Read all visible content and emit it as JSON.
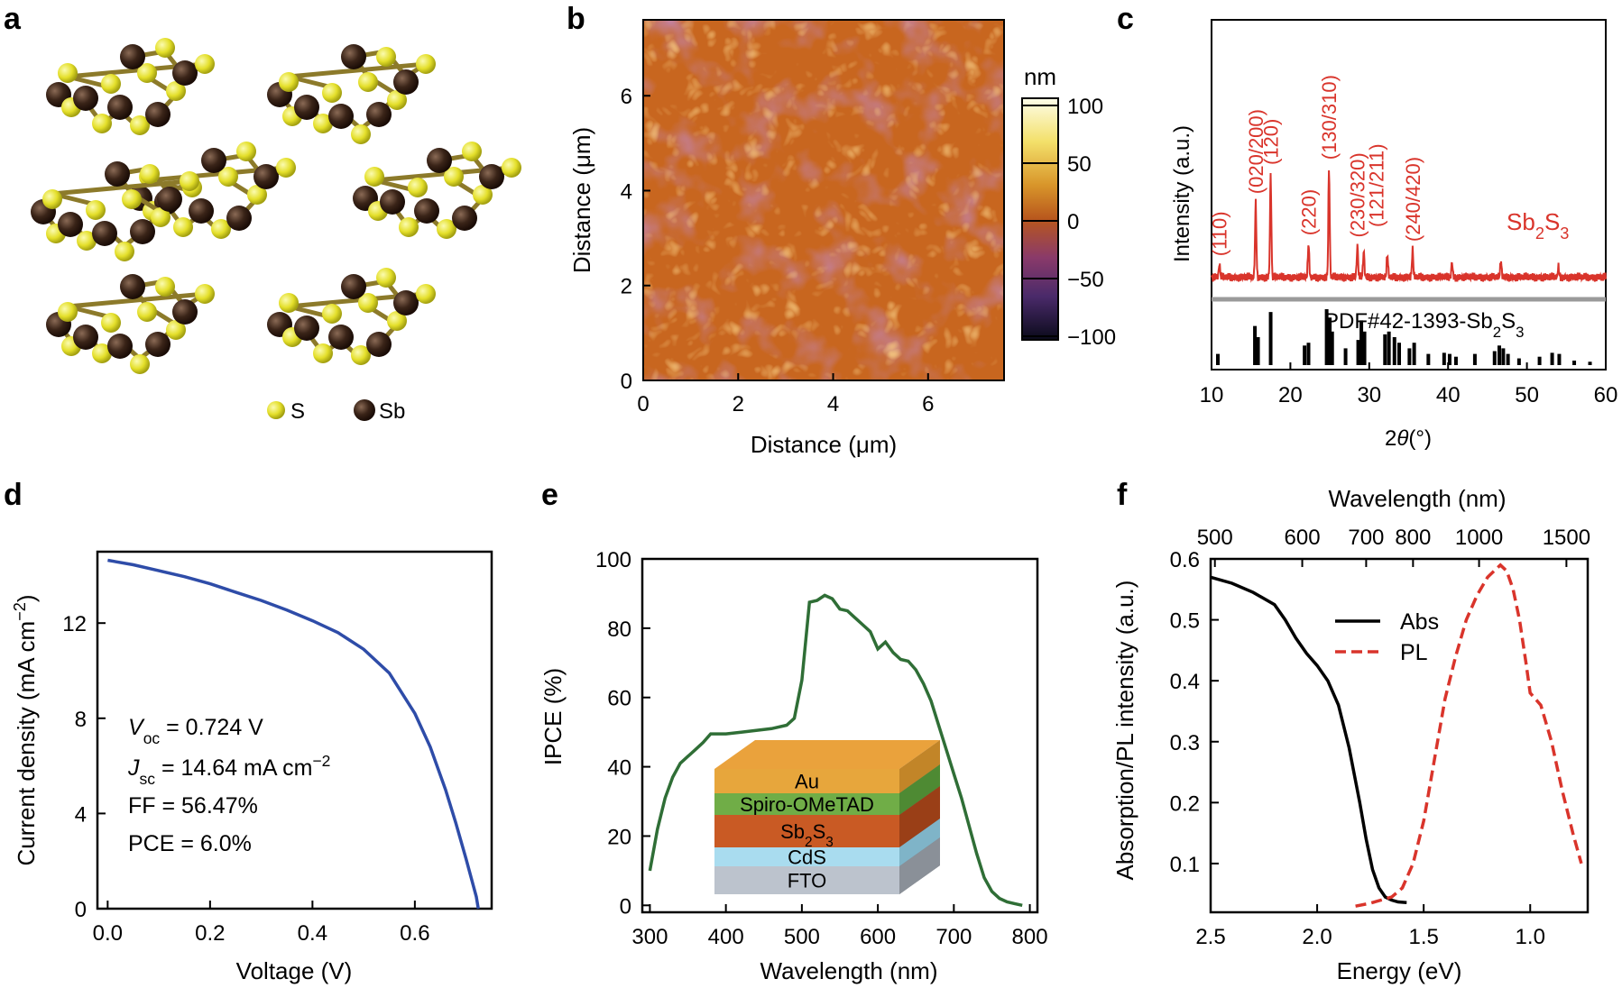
{
  "panels": [
    {
      "id": "a",
      "letter": "a"
    },
    {
      "id": "b",
      "letter": "b"
    },
    {
      "id": "c",
      "letter": "c"
    },
    {
      "id": "d",
      "letter": "d"
    },
    {
      "id": "e",
      "letter": "e"
    },
    {
      "id": "f",
      "letter": "f"
    }
  ],
  "structure": {
    "legend": [
      {
        "label": "S",
        "color": "#e8e436"
      },
      {
        "label": "Sb",
        "color": "#3a2418"
      }
    ]
  },
  "afm": {
    "xlabel": "Distance (μm)",
    "ylabel": "Distance (μm)",
    "ticks": [
      "0",
      "2",
      "4",
      "6"
    ],
    "colorbar_unit": "nm",
    "colorbar_ticks": [
      "100",
      "50",
      "0",
      "−50",
      "−100"
    ]
  },
  "chart_data": [
    {
      "panel": "c",
      "type": "bar",
      "title": "",
      "xlabel_pre": "2",
      "xlabel_var": "θ",
      "xlabel_post": "(°)",
      "ylabel": "Intensity (a.u.)",
      "xlim": [
        10,
        60
      ],
      "xticks": [
        "10",
        "20",
        "30",
        "40",
        "50",
        "60"
      ],
      "sample": "Sb",
      "sample_sub": "2",
      "sample_tail": "S",
      "sample_sub2": "3",
      "reference_pre": "PDF#42-1393-Sb",
      "reference_sub": "2",
      "reference_mid": "S",
      "reference_sub2": "3",
      "peaks": [
        {
          "x": 11.0,
          "h": 0.12
        },
        {
          "x": 15.6,
          "h": 0.72
        },
        {
          "x": 17.5,
          "h": 1.0
        },
        {
          "x": 22.3,
          "h": 0.32
        },
        {
          "x": 24.9,
          "h": 1.05
        },
        {
          "x": 28.5,
          "h": 0.3
        },
        {
          "x": 29.3,
          "h": 0.25
        },
        {
          "x": 32.3,
          "h": 0.22
        },
        {
          "x": 35.5,
          "h": 0.26
        },
        {
          "x": 40.5,
          "h": 0.14
        },
        {
          "x": 46.7,
          "h": 0.16
        },
        {
          "x": 54.0,
          "h": 0.1
        }
      ],
      "peak_labels": [
        {
          "x": 11.0,
          "label": "(110)"
        },
        {
          "x": 15.6,
          "label": "(020/200)"
        },
        {
          "x": 17.5,
          "label": "(120)"
        },
        {
          "x": 22.3,
          "label": "(220)"
        },
        {
          "x": 24.9,
          "label": "(130/310)"
        },
        {
          "x": 28.5,
          "label": "(230/320)"
        },
        {
          "x": 30.9,
          "label": "(121/211)"
        },
        {
          "x": 35.5,
          "label": "(240/420)"
        }
      ],
      "reference_sticks": [
        {
          "x": 10.8,
          "h": 0.2
        },
        {
          "x": 15.5,
          "h": 0.7
        },
        {
          "x": 15.9,
          "h": 0.5
        },
        {
          "x": 17.5,
          "h": 0.95
        },
        {
          "x": 21.8,
          "h": 0.35
        },
        {
          "x": 22.3,
          "h": 0.4
        },
        {
          "x": 24.6,
          "h": 1.0
        },
        {
          "x": 25.0,
          "h": 0.85
        },
        {
          "x": 25.3,
          "h": 0.6
        },
        {
          "x": 27.0,
          "h": 0.3
        },
        {
          "x": 28.6,
          "h": 0.45
        },
        {
          "x": 29.0,
          "h": 0.8
        },
        {
          "x": 29.4,
          "h": 0.6
        },
        {
          "x": 32.0,
          "h": 0.55
        },
        {
          "x": 32.5,
          "h": 0.6
        },
        {
          "x": 33.2,
          "h": 0.5
        },
        {
          "x": 33.8,
          "h": 0.4
        },
        {
          "x": 35.1,
          "h": 0.3
        },
        {
          "x": 35.7,
          "h": 0.4
        },
        {
          "x": 37.5,
          "h": 0.2
        },
        {
          "x": 39.5,
          "h": 0.22
        },
        {
          "x": 40.2,
          "h": 0.2
        },
        {
          "x": 41.0,
          "h": 0.15
        },
        {
          "x": 43.4,
          "h": 0.2
        },
        {
          "x": 45.9,
          "h": 0.25
        },
        {
          "x": 46.5,
          "h": 0.35
        },
        {
          "x": 47.0,
          "h": 0.3
        },
        {
          "x": 47.6,
          "h": 0.2
        },
        {
          "x": 49.0,
          "h": 0.12
        },
        {
          "x": 51.6,
          "h": 0.15
        },
        {
          "x": 53.2,
          "h": 0.22
        },
        {
          "x": 54.1,
          "h": 0.2
        },
        {
          "x": 56.0,
          "h": 0.08
        },
        {
          "x": 58.0,
          "h": 0.06
        }
      ]
    },
    {
      "panel": "d",
      "type": "line",
      "xlabel": "Voltage (V)",
      "ylabel": "Current density (mA cm",
      "ylabel_sup": "−2",
      "ylabel_tail": ")",
      "xlim": [
        -0.02,
        0.75
      ],
      "ylim": [
        0,
        15
      ],
      "xticks": [
        {
          "v": 0.0,
          "l": "0.0"
        },
        {
          "v": 0.2,
          "l": "0.2"
        },
        {
          "v": 0.4,
          "l": "0.4"
        },
        {
          "v": 0.6,
          "l": "0.6"
        }
      ],
      "yticks": [
        {
          "v": 0,
          "l": "0"
        },
        {
          "v": 4,
          "l": "4"
        },
        {
          "v": 8,
          "l": "8"
        },
        {
          "v": 12,
          "l": "12"
        }
      ],
      "x": [
        0.0,
        0.05,
        0.1,
        0.15,
        0.2,
        0.25,
        0.3,
        0.35,
        0.4,
        0.45,
        0.5,
        0.55,
        0.6,
        0.63,
        0.66,
        0.68,
        0.7,
        0.71,
        0.72,
        0.724
      ],
      "y": [
        14.64,
        14.45,
        14.2,
        13.95,
        13.65,
        13.3,
        12.95,
        12.55,
        12.1,
        11.6,
        10.9,
        9.9,
        8.2,
        6.8,
        5.0,
        3.6,
        2.1,
        1.3,
        0.5,
        0.0
      ],
      "color": "#2e4ca8",
      "annotations": {
        "voc_pre": "V",
        "voc_sub": "oc",
        "voc_val": " = 0.724 V",
        "jsc_pre": "J",
        "jsc_sub": "sc",
        "jsc_val": " = 14.64 mA cm",
        "jsc_sup": "−2",
        "ff": "FF = 56.47%",
        "pce": "PCE = 6.0%"
      }
    },
    {
      "panel": "e",
      "type": "line",
      "xlabel": "Wavelength (nm)",
      "ylabel": "IPCE (%)",
      "xlim": [
        290,
        810
      ],
      "ylim": [
        -2,
        100
      ],
      "xticks": [
        {
          "v": 300,
          "l": "300"
        },
        {
          "v": 400,
          "l": "400"
        },
        {
          "v": 500,
          "l": "500"
        },
        {
          "v": 600,
          "l": "600"
        },
        {
          "v": 700,
          "l": "700"
        },
        {
          "v": 800,
          "l": "800"
        }
      ],
      "yticks": [
        {
          "v": 0,
          "l": "0"
        },
        {
          "v": 20,
          "l": "20"
        },
        {
          "v": 40,
          "l": "40"
        },
        {
          "v": 60,
          "l": "60"
        },
        {
          "v": 80,
          "l": "80"
        },
        {
          "v": 100,
          "l": "100"
        }
      ],
      "x": [
        300,
        310,
        320,
        330,
        340,
        350,
        360,
        370,
        380,
        390,
        400,
        420,
        440,
        460,
        480,
        490,
        500,
        510,
        520,
        530,
        540,
        550,
        560,
        570,
        580,
        590,
        600,
        610,
        620,
        630,
        640,
        650,
        660,
        670,
        680,
        690,
        700,
        710,
        720,
        730,
        740,
        750,
        760,
        770,
        780,
        790
      ],
      "y": [
        10,
        22,
        31,
        37,
        41,
        43,
        45,
        47,
        49.5,
        49.5,
        49.5,
        50,
        50.5,
        51,
        52,
        54,
        65,
        87.5,
        88,
        89.5,
        88.5,
        85.5,
        85,
        83,
        81,
        79,
        74,
        76,
        73,
        71,
        70.5,
        68,
        64,
        59,
        52,
        45,
        38,
        31,
        23,
        15,
        8,
        4,
        2,
        1,
        0.5,
        0
      ],
      "color": "#2f6e36",
      "inset_layers": [
        {
          "label": "Au",
          "top": "#eaa23c",
          "front": "#e7a63c"
        },
        {
          "label": "Spiro-OMeTAD",
          "top": "#75b24c",
          "front": "#70ad47"
        },
        {
          "label_pre": "Sb",
          "label_sub": "2",
          "label_mid": "S",
          "label_sub2": "3",
          "top": "#c6521e",
          "front": "#c95a24"
        },
        {
          "label": "CdS",
          "top": "#a8dcf0",
          "front": "#a9dcef"
        },
        {
          "label": "FTO",
          "top": "#b6bcc6",
          "front": "#bcc3cd"
        }
      ]
    },
    {
      "panel": "f",
      "type": "line",
      "xlabel": "Energy (eV)",
      "x2label": "Wavelength (nm)",
      "ylabel": "Absorption/PL intensity (a.u.)",
      "xlim": [
        2.5,
        0.73
      ],
      "ylim": [
        0.02,
        0.6
      ],
      "xticks": [
        {
          "v": 2.5,
          "l": "2.5"
        },
        {
          "v": 2.0,
          "l": "2.0"
        },
        {
          "v": 1.5,
          "l": "1.5"
        },
        {
          "v": 1.0,
          "l": "1.0"
        }
      ],
      "x2ticks": [
        {
          "v": 2.48,
          "l": "500"
        },
        {
          "v": 2.07,
          "l": "600"
        },
        {
          "v": 1.77,
          "l": "700"
        },
        {
          "v": 1.55,
          "l": "800"
        },
        {
          "v": 1.24,
          "l": "1000"
        },
        {
          "v": 0.83,
          "l": "1500"
        }
      ],
      "yticks": [
        {
          "v": 0.1,
          "l": "0.1"
        },
        {
          "v": 0.2,
          "l": "0.2"
        },
        {
          "v": 0.3,
          "l": "0.3"
        },
        {
          "v": 0.4,
          "l": "0.4"
        },
        {
          "v": 0.5,
          "l": "0.5"
        },
        {
          "v": 0.6,
          "l": "0.6"
        }
      ],
      "series": [
        {
          "name": "Abs",
          "color": "#000000",
          "dash": false,
          "x": [
            2.5,
            2.4,
            2.3,
            2.2,
            2.15,
            2.1,
            2.05,
            2.0,
            1.95,
            1.9,
            1.85,
            1.8,
            1.77,
            1.74,
            1.71,
            1.68,
            1.65,
            1.62,
            1.58
          ],
          "y": [
            0.57,
            0.56,
            0.545,
            0.525,
            0.5,
            0.47,
            0.445,
            0.425,
            0.4,
            0.36,
            0.29,
            0.2,
            0.14,
            0.09,
            0.06,
            0.045,
            0.04,
            0.037,
            0.036
          ]
        },
        {
          "name": "PL",
          "color": "#d9342b",
          "dash": true,
          "x": [
            1.82,
            1.75,
            1.7,
            1.65,
            1.6,
            1.55,
            1.5,
            1.45,
            1.4,
            1.35,
            1.3,
            1.25,
            1.2,
            1.17,
            1.14,
            1.11,
            1.08,
            1.05,
            1.02,
            1.0,
            0.95,
            0.9,
            0.85,
            0.8,
            0.76
          ],
          "y": [
            0.03,
            0.035,
            0.04,
            0.045,
            0.06,
            0.1,
            0.17,
            0.27,
            0.37,
            0.44,
            0.5,
            0.54,
            0.57,
            0.58,
            0.59,
            0.58,
            0.55,
            0.5,
            0.43,
            0.38,
            0.36,
            0.3,
            0.22,
            0.15,
            0.1
          ]
        }
      ],
      "legend": [
        {
          "label": "Abs",
          "color": "#000000",
          "dash": false
        },
        {
          "label": "PL",
          "color": "#d9342b",
          "dash": true
        }
      ]
    }
  ]
}
